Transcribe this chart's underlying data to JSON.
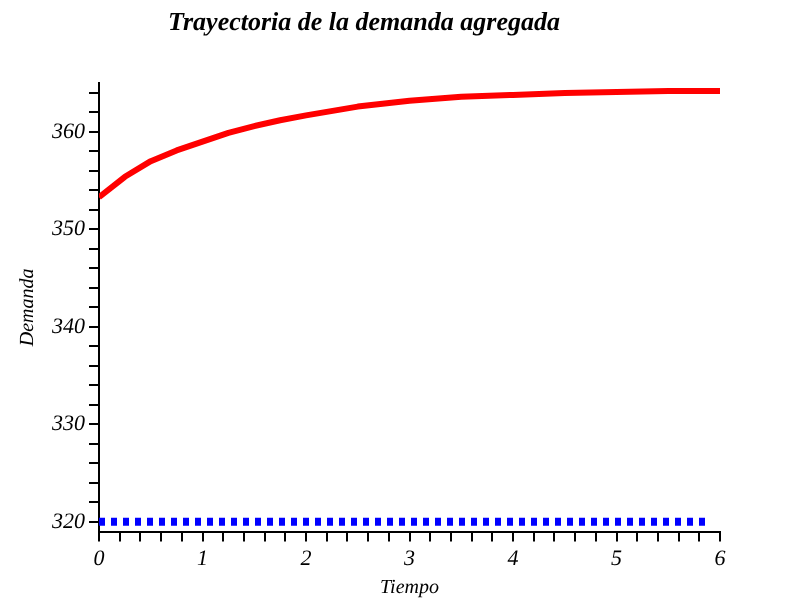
{
  "chart_data": {
    "type": "line",
    "title": "Trayectoria de la demanda agregada",
    "xlabel": "Tiempo",
    "ylabel": "Demanda",
    "xlim": [
      0,
      6
    ],
    "ylim": [
      319,
      365
    ],
    "grid": false,
    "legend": false,
    "xticks": [
      0,
      {
        "value": 0.2,
        "label": null
      },
      {
        "value": 0.4,
        "label": null
      },
      {
        "value": 0.6,
        "label": null
      },
      {
        "value": 0.8,
        "label": null
      },
      1,
      {
        "value": 1.2,
        "label": null
      },
      {
        "value": 1.4,
        "label": null
      },
      {
        "value": 1.6,
        "label": null
      },
      {
        "value": 1.8,
        "label": null
      },
      2,
      {
        "value": 2.2,
        "label": null
      },
      {
        "value": 2.4,
        "label": null
      },
      {
        "value": 2.6,
        "label": null
      },
      {
        "value": 2.8,
        "label": null
      },
      3,
      {
        "value": 3.2,
        "label": null
      },
      {
        "value": 3.4,
        "label": null
      },
      {
        "value": 3.6,
        "label": null
      },
      {
        "value": 3.8,
        "label": null
      },
      4,
      {
        "value": 4.2,
        "label": null
      },
      {
        "value": 4.4,
        "label": null
      },
      {
        "value": 4.6,
        "label": null
      },
      {
        "value": 4.8,
        "label": null
      },
      5,
      {
        "value": 5.2,
        "label": null
      },
      {
        "value": 5.4,
        "label": null
      },
      {
        "value": 5.6,
        "label": null
      },
      {
        "value": 5.8,
        "label": null
      },
      6
    ],
    "yticks": [
      320,
      {
        "value": 322,
        "label": null
      },
      {
        "value": 324,
        "label": null
      },
      {
        "value": 326,
        "label": null
      },
      {
        "value": 328,
        "label": null
      },
      330,
      {
        "value": 332,
        "label": null
      },
      {
        "value": 334,
        "label": null
      },
      {
        "value": 336,
        "label": null
      },
      {
        "value": 338,
        "label": null
      },
      340,
      {
        "value": 342,
        "label": null
      },
      {
        "value": 344,
        "label": null
      },
      {
        "value": 346,
        "label": null
      },
      {
        "value": 348,
        "label": null
      },
      350,
      {
        "value": 352,
        "label": null
      },
      {
        "value": 354,
        "label": null
      },
      {
        "value": 356,
        "label": null
      },
      {
        "value": 358,
        "label": null
      },
      360,
      {
        "value": 362,
        "label": null
      },
      {
        "value": 364,
        "label": null
      }
    ],
    "series": [
      {
        "color": "#ff0000",
        "line_style": "solid",
        "x": [
          0,
          0.25,
          0.5,
          0.75,
          1,
          1.25,
          1.5,
          1.75,
          2,
          2.5,
          3,
          3.5,
          4,
          4.5,
          5,
          5.5,
          6
        ],
        "values": [
          353.3,
          355.4,
          357,
          358.1,
          359,
          359.9,
          360.6,
          361.2,
          361.7,
          362.6,
          363.2,
          363.6,
          363.8,
          364,
          364.1,
          364.2,
          364.2
        ]
      },
      {
        "color": "#0000ff",
        "line_style": "dotted",
        "x": [
          0,
          5.9
        ],
        "values": [
          320,
          320
        ]
      }
    ]
  }
}
